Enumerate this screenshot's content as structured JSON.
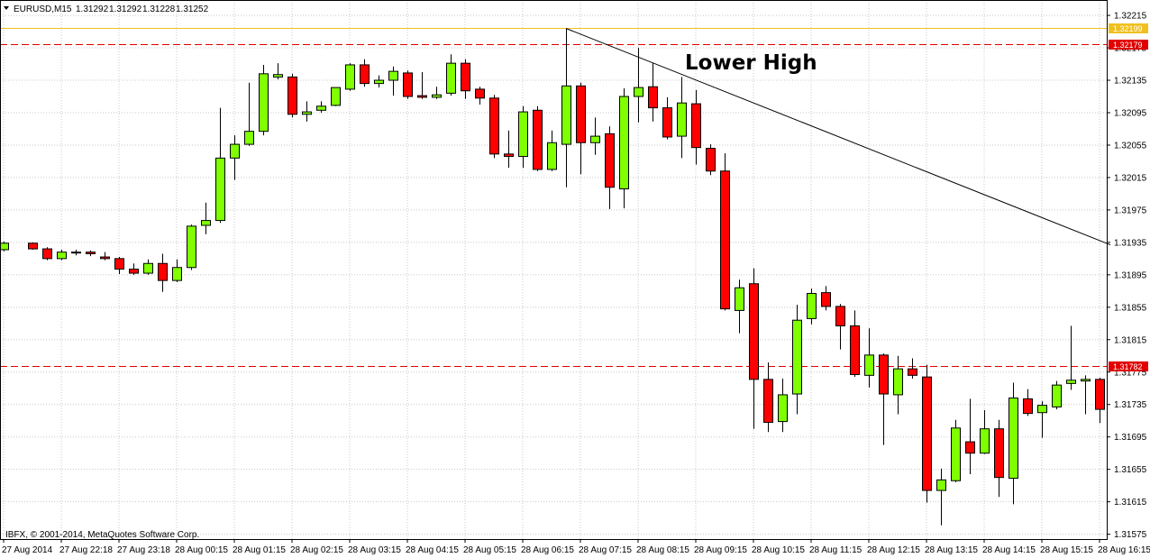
{
  "chart_data": {
    "type": "candlestick",
    "symbol": "EURUSD,M15",
    "header_values": [
      1.31292,
      1.31292,
      1.31228,
      1.31252
    ],
    "copyright": "IBFX, © 2001-2014, MetaQuotes Software Corp.",
    "annotation": "Lower High",
    "categories": [
      "27 Aug 2014",
      null,
      null,
      null,
      "27 Aug 22:18",
      null,
      null,
      null,
      "27 Aug 23:18",
      null,
      null,
      null,
      "28 Aug 00:15",
      null,
      null,
      null,
      "28 Aug 01:15",
      null,
      null,
      null,
      "28 Aug 02:15",
      null,
      null,
      null,
      "28 Aug 03:15",
      null,
      null,
      null,
      "28 Aug 04:15",
      null,
      null,
      null,
      "28 Aug 05:15",
      null,
      null,
      null,
      "28 Aug 06:15",
      null,
      null,
      null,
      "28 Aug 07:15",
      null,
      null,
      null,
      "28 Aug 08:15",
      null,
      null,
      null,
      "28 Aug 09:15",
      null,
      null,
      null,
      "28 Aug 10:15",
      null,
      null,
      null,
      "28 Aug 11:15",
      null,
      null,
      null,
      "28 Aug 12:15",
      null,
      null,
      null,
      "28 Aug 13:15",
      null,
      null,
      null,
      "28 Aug 14:15",
      null,
      null,
      null,
      "28 Aug 15:15",
      null,
      null,
      null,
      "28 Aug 16:15"
    ],
    "open": [
      1.31926,
      null,
      1.31934,
      1.31927,
      1.31915,
      1.31923,
      1.31923,
      1.31917,
      1.31915,
      1.31902,
      1.31897,
      1.31909,
      1.31888,
      1.31904,
      1.31956,
      1.31962,
      1.32039,
      1.32056,
      1.32072,
      1.32139,
      1.32139,
      1.32093,
      1.32098,
      1.32104,
      1.32124,
      1.32154,
      1.32131,
      1.32135,
      1.32144,
      1.32116,
      1.32114,
      1.32119,
      1.32156,
      1.32124,
      1.32113,
      1.32044,
      1.32041,
      1.32098,
      1.32025,
      1.32056,
      1.32128,
      1.32058,
      1.32069,
      1.32001,
      1.32115,
      1.32127,
      1.32101,
      1.32066,
      1.32106,
      1.32051,
      1.32023,
      1.31851,
      1.31884,
      1.31766,
      1.31714,
      1.31748,
      1.31841,
      1.31873,
      1.31856,
      1.31832,
      1.31771,
      1.31796,
      1.31747,
      1.31779,
      1.31769,
      1.31629,
      1.31641,
      1.31689,
      1.31675,
      1.31705,
      1.31644,
      1.31742,
      1.31725,
      1.31732,
      1.31761,
      1.31764,
      1.31766
    ],
    "high": [
      1.31936,
      null,
      1.31935,
      1.31929,
      1.31926,
      1.31926,
      1.31925,
      1.31923,
      1.31917,
      1.31909,
      1.31914,
      1.31921,
      1.31914,
      1.31957,
      1.31984,
      1.32101,
      1.32067,
      1.32132,
      1.32154,
      1.32156,
      1.32143,
      1.32109,
      1.32109,
      1.32126,
      1.32156,
      1.32161,
      1.32141,
      1.32152,
      1.32147,
      1.32145,
      1.32127,
      1.32167,
      1.32161,
      1.32127,
      1.32117,
      1.32073,
      1.32103,
      1.32103,
      1.32073,
      1.32199,
      1.32132,
      1.32089,
      1.32078,
      1.32125,
      1.32175,
      1.32156,
      1.32114,
      1.32139,
      1.32123,
      1.32056,
      1.32045,
      1.31889,
      1.31903,
      1.31787,
      1.31767,
      1.31858,
      1.31878,
      1.31881,
      1.31859,
      1.31851,
      1.31829,
      1.31798,
      1.31795,
      1.31792,
      1.31784,
      1.31656,
      1.31716,
      1.31742,
      1.31728,
      1.31716,
      1.31762,
      1.31754,
      1.31739,
      1.31764,
      1.31832,
      1.31771,
      1.31768
    ],
    "low": [
      1.31924,
      null,
      1.31926,
      1.31913,
      1.31913,
      1.31919,
      1.31918,
      1.31913,
      1.31896,
      1.31895,
      1.31895,
      1.31874,
      1.31886,
      1.31901,
      1.31945,
      1.31959,
      1.32012,
      1.32054,
      1.32067,
      1.32136,
      1.32089,
      1.32084,
      1.32095,
      1.32103,
      1.32122,
      1.32127,
      1.32126,
      1.32116,
      1.32112,
      1.32112,
      1.32112,
      1.32116,
      1.32112,
      1.32105,
      1.32039,
      1.32027,
      1.32027,
      1.32023,
      1.32023,
      1.32003,
      1.32019,
      1.32043,
      1.31976,
      1.31977,
      1.32083,
      1.32084,
      1.32062,
      1.32039,
      1.32031,
      1.32018,
      1.31851,
      1.31823,
      1.31705,
      1.31701,
      1.31701,
      1.31723,
      1.31834,
      1.31851,
      1.31803,
      1.31769,
      1.31756,
      1.31685,
      1.31723,
      1.31767,
      1.31614,
      1.31586,
      1.31639,
      1.31649,
      1.31674,
      1.31621,
      1.31612,
      1.31721,
      1.31694,
      1.31729,
      1.31753,
      1.31723,
      1.31712
    ],
    "close": [
      1.31934,
      null,
      1.31927,
      1.31915,
      1.31923,
      1.31922,
      1.31921,
      1.31915,
      1.31902,
      1.31897,
      1.31909,
      1.31888,
      1.31904,
      1.31955,
      1.31962,
      1.32039,
      1.32056,
      1.32072,
      1.32143,
      1.32142,
      1.32093,
      1.32096,
      1.32103,
      1.32126,
      1.32154,
      1.32131,
      1.32135,
      1.32146,
      1.32115,
      1.32114,
      1.32117,
      1.32156,
      1.32122,
      1.32113,
      1.32044,
      1.32041,
      1.32096,
      1.32025,
      1.32058,
      1.32128,
      1.32058,
      1.32066,
      1.32003,
      1.32115,
      1.32126,
      1.32101,
      1.32065,
      1.32107,
      1.32052,
      1.32023,
      1.31853,
      1.31879,
      1.31766,
      1.31713,
      1.31747,
      1.31839,
      1.31872,
      1.31856,
      1.31832,
      1.31772,
      1.31796,
      1.31748,
      1.31779,
      1.31771,
      1.31629,
      1.31642,
      1.31706,
      1.31675,
      1.31705,
      1.31645,
      1.31743,
      1.31724,
      1.31734,
      1.31759,
      1.31765,
      1.31766,
      1.31729
    ],
    "up_color": "#7fff00",
    "down_color": "#ff0000",
    "ylim": [
      1.31569,
      1.32234
    ],
    "yticks": [
      1.32215,
      1.32175,
      1.32135,
      1.32095,
      1.32055,
      1.32015,
      1.31975,
      1.31935,
      1.31895,
      1.31855,
      1.31815,
      1.31775,
      1.31735,
      1.31695,
      1.31655,
      1.31615,
      1.31575
    ],
    "grid": true,
    "hlines": [
      {
        "value": 1.32199,
        "color": "#f0c020",
        "style": "solid"
      },
      {
        "value": 1.32179,
        "color": "#e00000",
        "style": "dashed"
      },
      {
        "value": 1.31782,
        "color": "#e00000",
        "style": "dashed"
      }
    ],
    "trendline": {
      "start": {
        "index": 39,
        "value": 1.32199
      },
      "end": {
        "index": 76.75,
        "value": 1.31932
      },
      "color": "#000000"
    }
  }
}
